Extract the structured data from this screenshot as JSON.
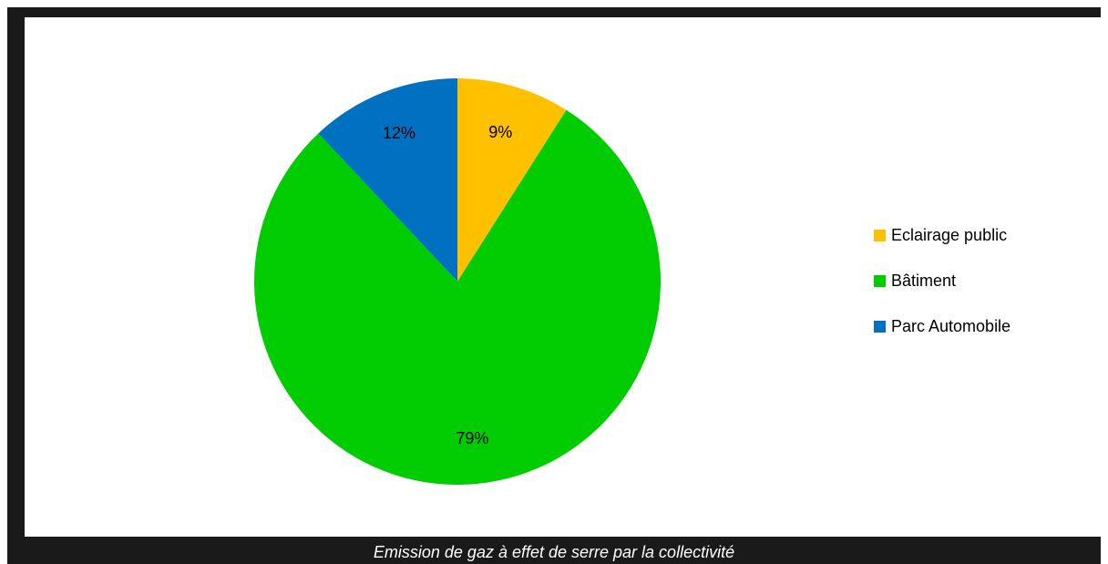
{
  "chart_data": {
    "type": "pie",
    "categories": [
      "Eclairage public",
      "Bâtiment",
      "Parc Automobile"
    ],
    "values": [
      9,
      79,
      12
    ],
    "labels": [
      "9%",
      "79%",
      "12%"
    ],
    "colors": [
      "#FFC000",
      "#00CC00",
      "#0070C0"
    ],
    "start_angle_deg": 0,
    "direction": "clockwise",
    "legend_position": "right"
  },
  "caption": "Emission de gaz à effet de serre par la collectivité"
}
